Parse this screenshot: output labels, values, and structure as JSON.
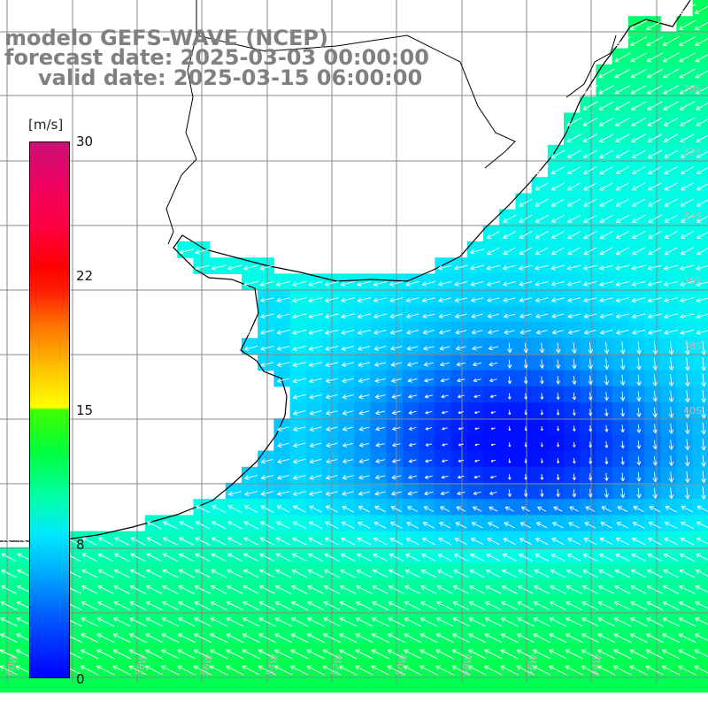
{
  "header": {
    "model_line": "modelo GEFS-WAVE (NCEP)",
    "forecast_line": "forecast date: 2025-03-03 00:00:00",
    "valid_line": "valid date: 2025-03-15 06:00:00"
  },
  "colorbar": {
    "unit": "[m/s]",
    "ticks": [
      "30",
      "22",
      "15",
      "8",
      "0"
    ],
    "tick_values": [
      30,
      22,
      15,
      8,
      0
    ]
  },
  "map": {
    "lat_labels": [
      "30S",
      "32S",
      "34S",
      "36S",
      "38S",
      "40S"
    ],
    "lon_labels": [
      "60W",
      "58W",
      "56W",
      "54W",
      "52W",
      "50W",
      "48W",
      "46W",
      "44W"
    ],
    "colors": {
      "land": "#ffffff",
      "grid": "#888888",
      "coast": "#000000",
      "arrow": "#ffffff"
    }
  }
}
